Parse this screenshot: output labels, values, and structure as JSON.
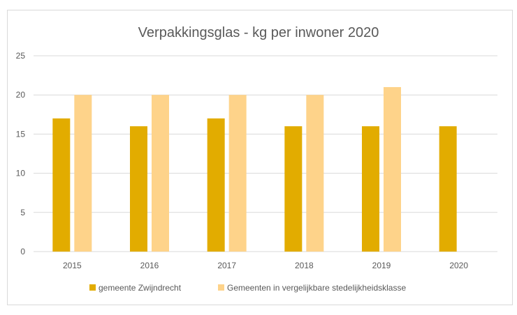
{
  "chart_data": {
    "type": "bar",
    "title": "Verpakkingsglas - kg per inwoner 2020",
    "xlabel": "",
    "ylabel": "",
    "categories": [
      "2015",
      "2016",
      "2017",
      "2018",
      "2019",
      "2020"
    ],
    "series": [
      {
        "name": "gemeente Zwijndrecht",
        "color": "#E2AC00",
        "values": [
          17,
          16,
          17,
          16,
          16,
          16
        ]
      },
      {
        "name": "Gemeenten in vergelijkbare stedelijkheidsklasse",
        "color": "#FED38A",
        "values": [
          20,
          20,
          20,
          20,
          21,
          null
        ]
      }
    ],
    "ylim": [
      0,
      25
    ],
    "yticks": [
      0,
      5,
      10,
      15,
      20,
      25
    ],
    "grid": true,
    "legend_position": "bottom",
    "gridline_color": "#d9d9d9"
  }
}
